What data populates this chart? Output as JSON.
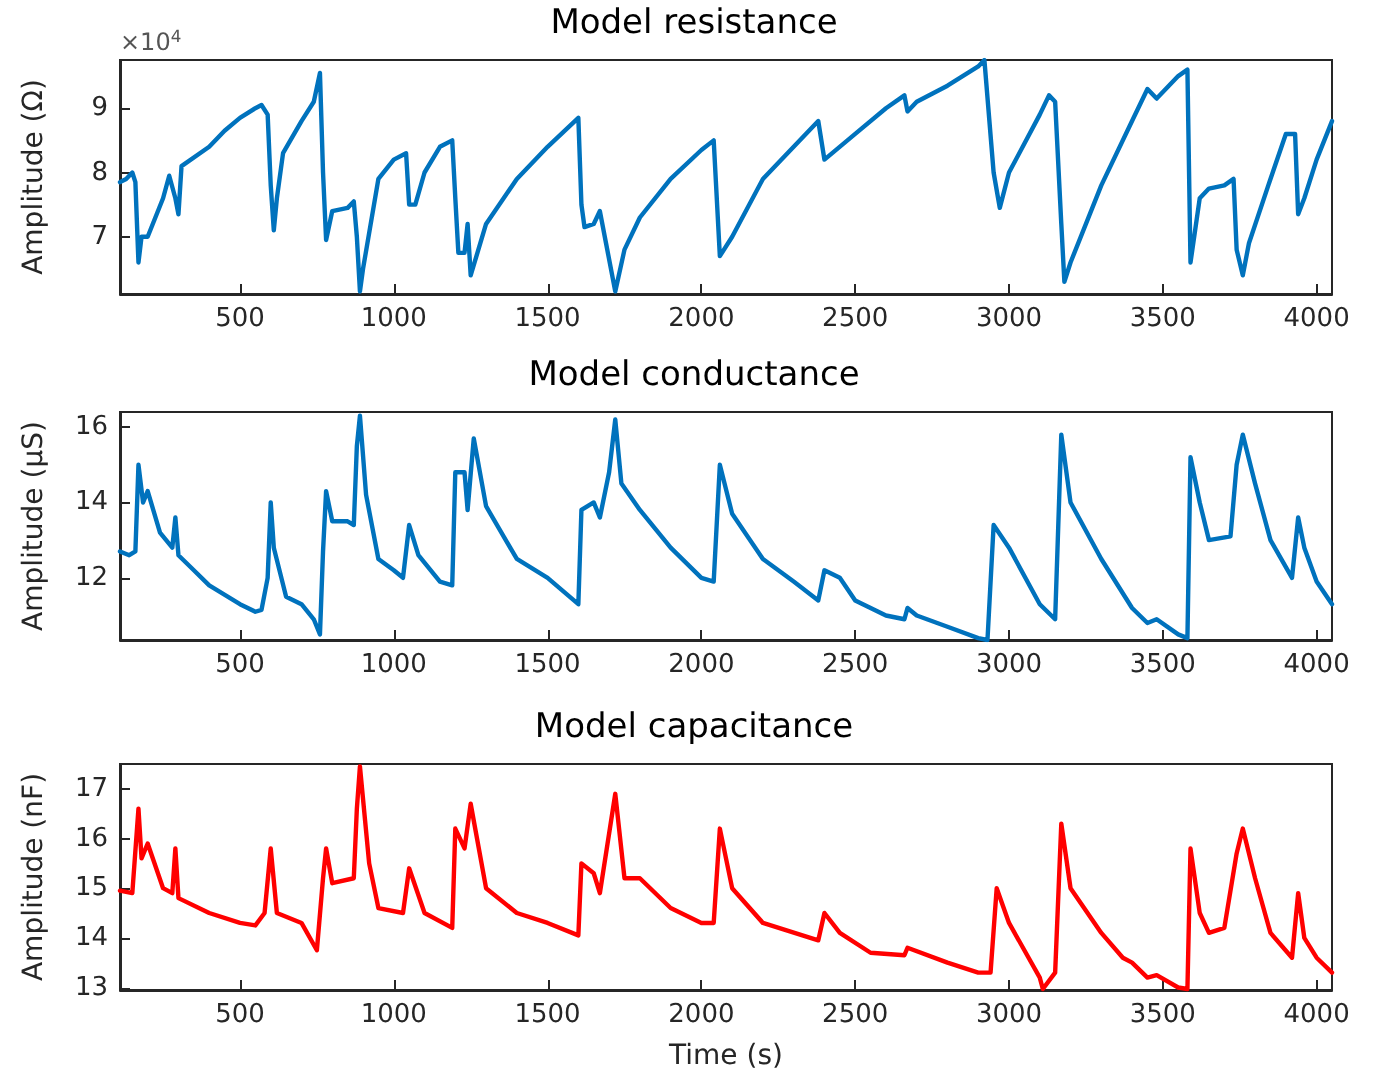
{
  "chart_data": [
    {
      "type": "line",
      "title": "Model resistance",
      "ylabel": "Amplitude (Ω)",
      "annotations": [
        "×10$^{4}$"
      ],
      "color": "#0072bd",
      "marker": "none",
      "line_style": "solid",
      "grid": false,
      "xlim": [
        110,
        4050
      ],
      "xticks": [
        500,
        1000,
        1500,
        2000,
        2500,
        3000,
        3500,
        4000
      ],
      "ylim": [
        6.11,
        9.75
      ],
      "yticks": [
        7,
        8,
        9
      ],
      "x": [
        110,
        130,
        150,
        160,
        170,
        180,
        200,
        250,
        270,
        290,
        300,
        310,
        400,
        450,
        500,
        550,
        570,
        590,
        600,
        610,
        620,
        640,
        700,
        740,
        760,
        770,
        780,
        800,
        850,
        870,
        880,
        890,
        900,
        950,
        1000,
        1040,
        1050,
        1070,
        1100,
        1150,
        1190,
        1200,
        1210,
        1230,
        1240,
        1250,
        1300,
        1400,
        1500,
        1600,
        1610,
        1620,
        1650,
        1670,
        1690,
        1720,
        1750,
        1800,
        1900,
        2000,
        2040,
        2060,
        2100,
        2200,
        2300,
        2380,
        2400,
        2500,
        2600,
        2660,
        2670,
        2700,
        2800,
        2900,
        2920,
        2950,
        2970,
        3000,
        3100,
        3130,
        3150,
        3170,
        3180,
        3200,
        3300,
        3400,
        3450,
        3480,
        3550,
        3580,
        3590,
        3620,
        3650,
        3700,
        3730,
        3740,
        3760,
        3780,
        3850,
        3900,
        3930,
        3940,
        3960,
        4000,
        4050
      ],
      "values": [
        7.85,
        7.9,
        8.0,
        7.85,
        6.6,
        7.0,
        7.0,
        7.6,
        7.95,
        7.6,
        7.35,
        8.1,
        8.4,
        8.65,
        8.85,
        9.0,
        9.05,
        8.9,
        7.8,
        7.1,
        7.6,
        8.3,
        8.8,
        9.1,
        9.55,
        8.0,
        6.95,
        7.4,
        7.45,
        7.55,
        7.0,
        6.15,
        6.5,
        7.9,
        8.2,
        8.3,
        7.5,
        7.5,
        8.0,
        8.4,
        8.5,
        7.6,
        6.75,
        6.75,
        7.2,
        6.4,
        7.2,
        7.9,
        8.4,
        8.85,
        7.5,
        7.15,
        7.2,
        7.4,
        6.9,
        6.15,
        6.8,
        7.3,
        7.9,
        8.35,
        8.5,
        6.7,
        7.0,
        7.9,
        8.4,
        8.8,
        8.2,
        8.6,
        9.0,
        9.2,
        8.95,
        9.1,
        9.35,
        9.65,
        9.75,
        8.0,
        7.45,
        8.0,
        8.9,
        9.2,
        9.1,
        7.2,
        6.3,
        6.6,
        7.8,
        8.8,
        9.3,
        9.15,
        9.5,
        9.6,
        6.6,
        7.6,
        7.75,
        7.8,
        7.9,
        6.8,
        6.4,
        6.9,
        7.9,
        8.6,
        8.6,
        7.35,
        7.6,
        8.2,
        8.8
      ]
    },
    {
      "type": "line",
      "title": "Model conductance",
      "ylabel": "Amplitude (μS)",
      "color": "#0072bd",
      "marker": "none",
      "line_style": "solid",
      "grid": false,
      "xlim": [
        110,
        4050
      ],
      "xticks": [
        500,
        1000,
        1500,
        2000,
        2500,
        3000,
        3500,
        4000
      ],
      "ylim": [
        10.35,
        16.4
      ],
      "yticks": [
        12,
        14,
        16
      ],
      "x": [
        110,
        140,
        160,
        170,
        185,
        200,
        240,
        280,
        290,
        300,
        350,
        400,
        500,
        550,
        570,
        590,
        600,
        610,
        650,
        700,
        740,
        760,
        770,
        780,
        800,
        850,
        870,
        880,
        890,
        910,
        950,
        1000,
        1030,
        1050,
        1080,
        1150,
        1190,
        1200,
        1230,
        1240,
        1260,
        1300,
        1400,
        1500,
        1600,
        1610,
        1650,
        1670,
        1700,
        1720,
        1740,
        1800,
        1900,
        2000,
        2040,
        2060,
        2100,
        2200,
        2300,
        2380,
        2400,
        2450,
        2500,
        2600,
        2660,
        2670,
        2700,
        2800,
        2900,
        2930,
        2950,
        3000,
        3100,
        3150,
        3170,
        3200,
        3300,
        3400,
        3450,
        3480,
        3550,
        3580,
        3590,
        3620,
        3650,
        3720,
        3740,
        3760,
        3800,
        3850,
        3920,
        3940,
        3960,
        4000,
        4050
      ],
      "values": [
        12.7,
        12.6,
        12.7,
        15.0,
        14.0,
        14.3,
        13.2,
        12.8,
        13.6,
        12.6,
        12.2,
        11.8,
        11.3,
        11.1,
        11.15,
        12.0,
        14.0,
        12.8,
        11.5,
        11.3,
        10.9,
        10.5,
        12.7,
        14.3,
        13.5,
        13.5,
        13.4,
        15.5,
        16.3,
        14.2,
        12.5,
        12.2,
        12.0,
        13.4,
        12.6,
        11.9,
        11.8,
        14.8,
        14.8,
        13.8,
        15.7,
        13.9,
        12.5,
        12.0,
        11.3,
        13.8,
        14.0,
        13.6,
        14.8,
        16.2,
        14.5,
        13.8,
        12.8,
        12.0,
        11.9,
        15.0,
        13.7,
        12.5,
        11.9,
        11.4,
        12.2,
        12.0,
        11.4,
        11.0,
        10.9,
        11.2,
        11.0,
        10.7,
        10.4,
        10.35,
        13.4,
        12.8,
        11.3,
        10.9,
        15.8,
        14.0,
        12.5,
        11.2,
        10.8,
        10.9,
        10.5,
        10.4,
        15.2,
        14.0,
        13.0,
        13.1,
        15.0,
        15.8,
        14.5,
        13.0,
        12.0,
        13.6,
        12.8,
        11.9,
        11.3
      ]
    },
    {
      "type": "line",
      "title": "Model capacitance",
      "xlabel": "Time (s)",
      "ylabel": "Amplitude (nF)",
      "color": "#ff0000",
      "marker": "none",
      "line_style": "solid",
      "grid": false,
      "xlim": [
        110,
        4050
      ],
      "xticks": [
        500,
        1000,
        1500,
        2000,
        2500,
        3000,
        3500,
        4000
      ],
      "ylim": [
        12.95,
        17.5
      ],
      "yticks": [
        13,
        14,
        15,
        16,
        17
      ],
      "x": [
        110,
        150,
        170,
        180,
        200,
        250,
        280,
        290,
        300,
        400,
        500,
        550,
        580,
        600,
        620,
        700,
        750,
        770,
        780,
        800,
        870,
        880,
        890,
        920,
        950,
        1030,
        1050,
        1100,
        1190,
        1200,
        1230,
        1250,
        1300,
        1400,
        1500,
        1600,
        1610,
        1650,
        1670,
        1720,
        1750,
        1800,
        1900,
        2000,
        2040,
        2060,
        2100,
        2200,
        2380,
        2400,
        2450,
        2550,
        2660,
        2670,
        2800,
        2900,
        2940,
        2960,
        3000,
        3100,
        3110,
        3150,
        3170,
        3200,
        3300,
        3370,
        3400,
        3450,
        3480,
        3550,
        3580,
        3590,
        3620,
        3650,
        3700,
        3740,
        3760,
        3800,
        3850,
        3920,
        3940,
        3960,
        4000,
        4050
      ],
      "values": [
        14.95,
        14.9,
        16.6,
        15.6,
        15.9,
        15.0,
        14.9,
        15.8,
        14.8,
        14.5,
        14.3,
        14.25,
        14.5,
        15.8,
        14.5,
        14.3,
        13.75,
        15.2,
        15.8,
        15.1,
        15.2,
        16.6,
        17.45,
        15.5,
        14.6,
        14.5,
        15.4,
        14.5,
        14.2,
        16.2,
        15.8,
        16.7,
        15.0,
        14.5,
        14.3,
        14.05,
        15.5,
        15.3,
        14.9,
        16.9,
        15.2,
        15.2,
        14.6,
        14.3,
        14.3,
        16.2,
        15.0,
        14.3,
        13.95,
        14.5,
        14.1,
        13.7,
        13.65,
        13.8,
        13.5,
        13.3,
        13.3,
        15.0,
        14.3,
        13.2,
        12.97,
        13.3,
        16.3,
        15.0,
        14.1,
        13.6,
        13.5,
        13.2,
        13.25,
        13.0,
        12.97,
        15.8,
        14.5,
        14.1,
        14.2,
        15.7,
        16.2,
        15.2,
        14.1,
        13.6,
        14.9,
        14.0,
        13.6,
        13.3
      ]
    }
  ]
}
